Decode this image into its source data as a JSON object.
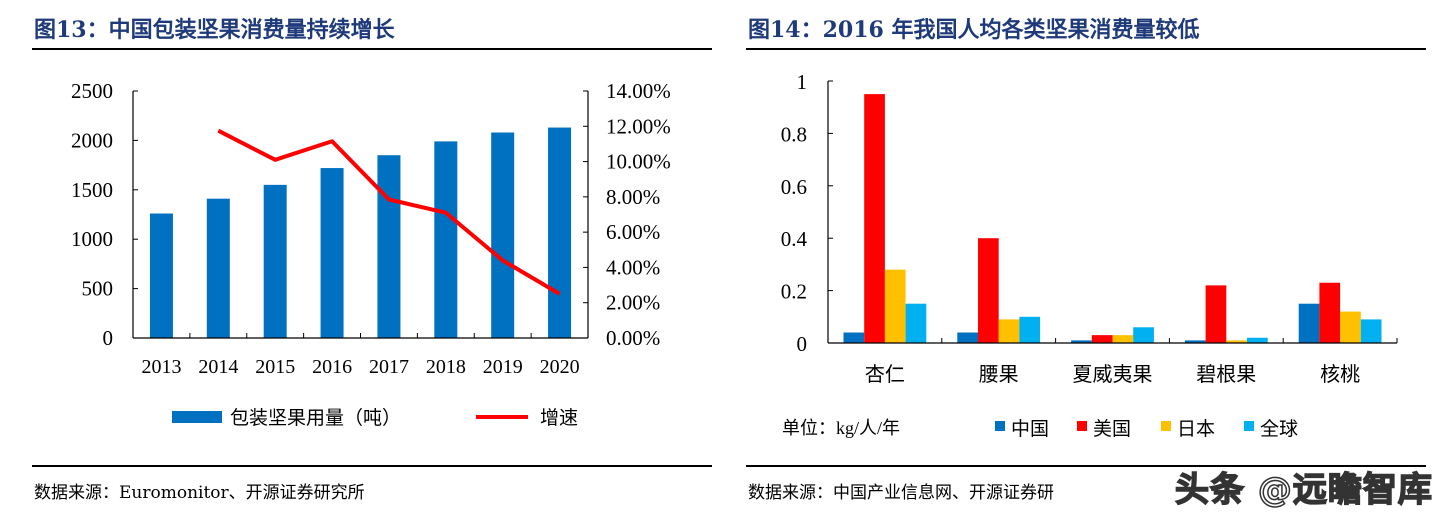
{
  "left": {
    "title": "图13：中国包装坚果消费量持续增长",
    "source": "数据来源：Euromonitor、开源证券研究所"
  },
  "right": {
    "title": "图14：2016 年我国人均各类坚果消费量较低",
    "source": "数据来源：中国产业信息网、开源证券研",
    "unit": "单位：kg/人/年"
  },
  "watermark": "头条 @远瞻智库",
  "chart_data": [
    {
      "type": "bar+line",
      "categories": [
        "2013",
        "2014",
        "2015",
        "2016",
        "2017",
        "2018",
        "2019",
        "2020"
      ],
      "series": [
        {
          "name": "包装坚果用量（吨）",
          "type": "bar",
          "axis": "left",
          "color": "#0070C0",
          "values": [
            1260,
            1410,
            1550,
            1720,
            1850,
            1990,
            2080,
            2130
          ]
        },
        {
          "name": "增速",
          "type": "line",
          "axis": "right",
          "color": "#FF0000",
          "values": [
            null,
            11.75,
            10.1,
            11.15,
            7.85,
            7.1,
            4.4,
            2.5
          ]
        }
      ],
      "ylim": [
        0,
        2500
      ],
      "yticks": [
        "0",
        "500",
        "1000",
        "1500",
        "2000",
        "2500"
      ],
      "y2lim": [
        0,
        14
      ],
      "y2ticks": [
        "0.00%",
        "2.00%",
        "4.00%",
        "6.00%",
        "8.00%",
        "10.00%",
        "12.00%",
        "14.00%"
      ],
      "grid": false,
      "legend": "bottom"
    },
    {
      "type": "bar",
      "categories": [
        "杏仁",
        "腰果",
        "夏威夷果",
        "碧根果",
        "核桃"
      ],
      "series": [
        {
          "name": "中国",
          "color": "#0070C0",
          "values": [
            0.04,
            0.04,
            0.01,
            0.01,
            0.15
          ]
        },
        {
          "name": "美国",
          "color": "#FF0000",
          "values": [
            0.95,
            0.4,
            0.03,
            0.22,
            0.23
          ]
        },
        {
          "name": "日本",
          "color": "#FFC000",
          "values": [
            0.28,
            0.09,
            0.03,
            0.01,
            0.12
          ]
        },
        {
          "name": "全球",
          "color": "#00B0F0",
          "values": [
            0.15,
            0.1,
            0.06,
            0.02,
            0.09
          ]
        }
      ],
      "ylim": [
        0,
        1
      ],
      "yticks": [
        "0",
        "0.2",
        "0.4",
        "0.6",
        "0.8",
        "1"
      ],
      "grid": false,
      "legend": "bottom"
    }
  ]
}
